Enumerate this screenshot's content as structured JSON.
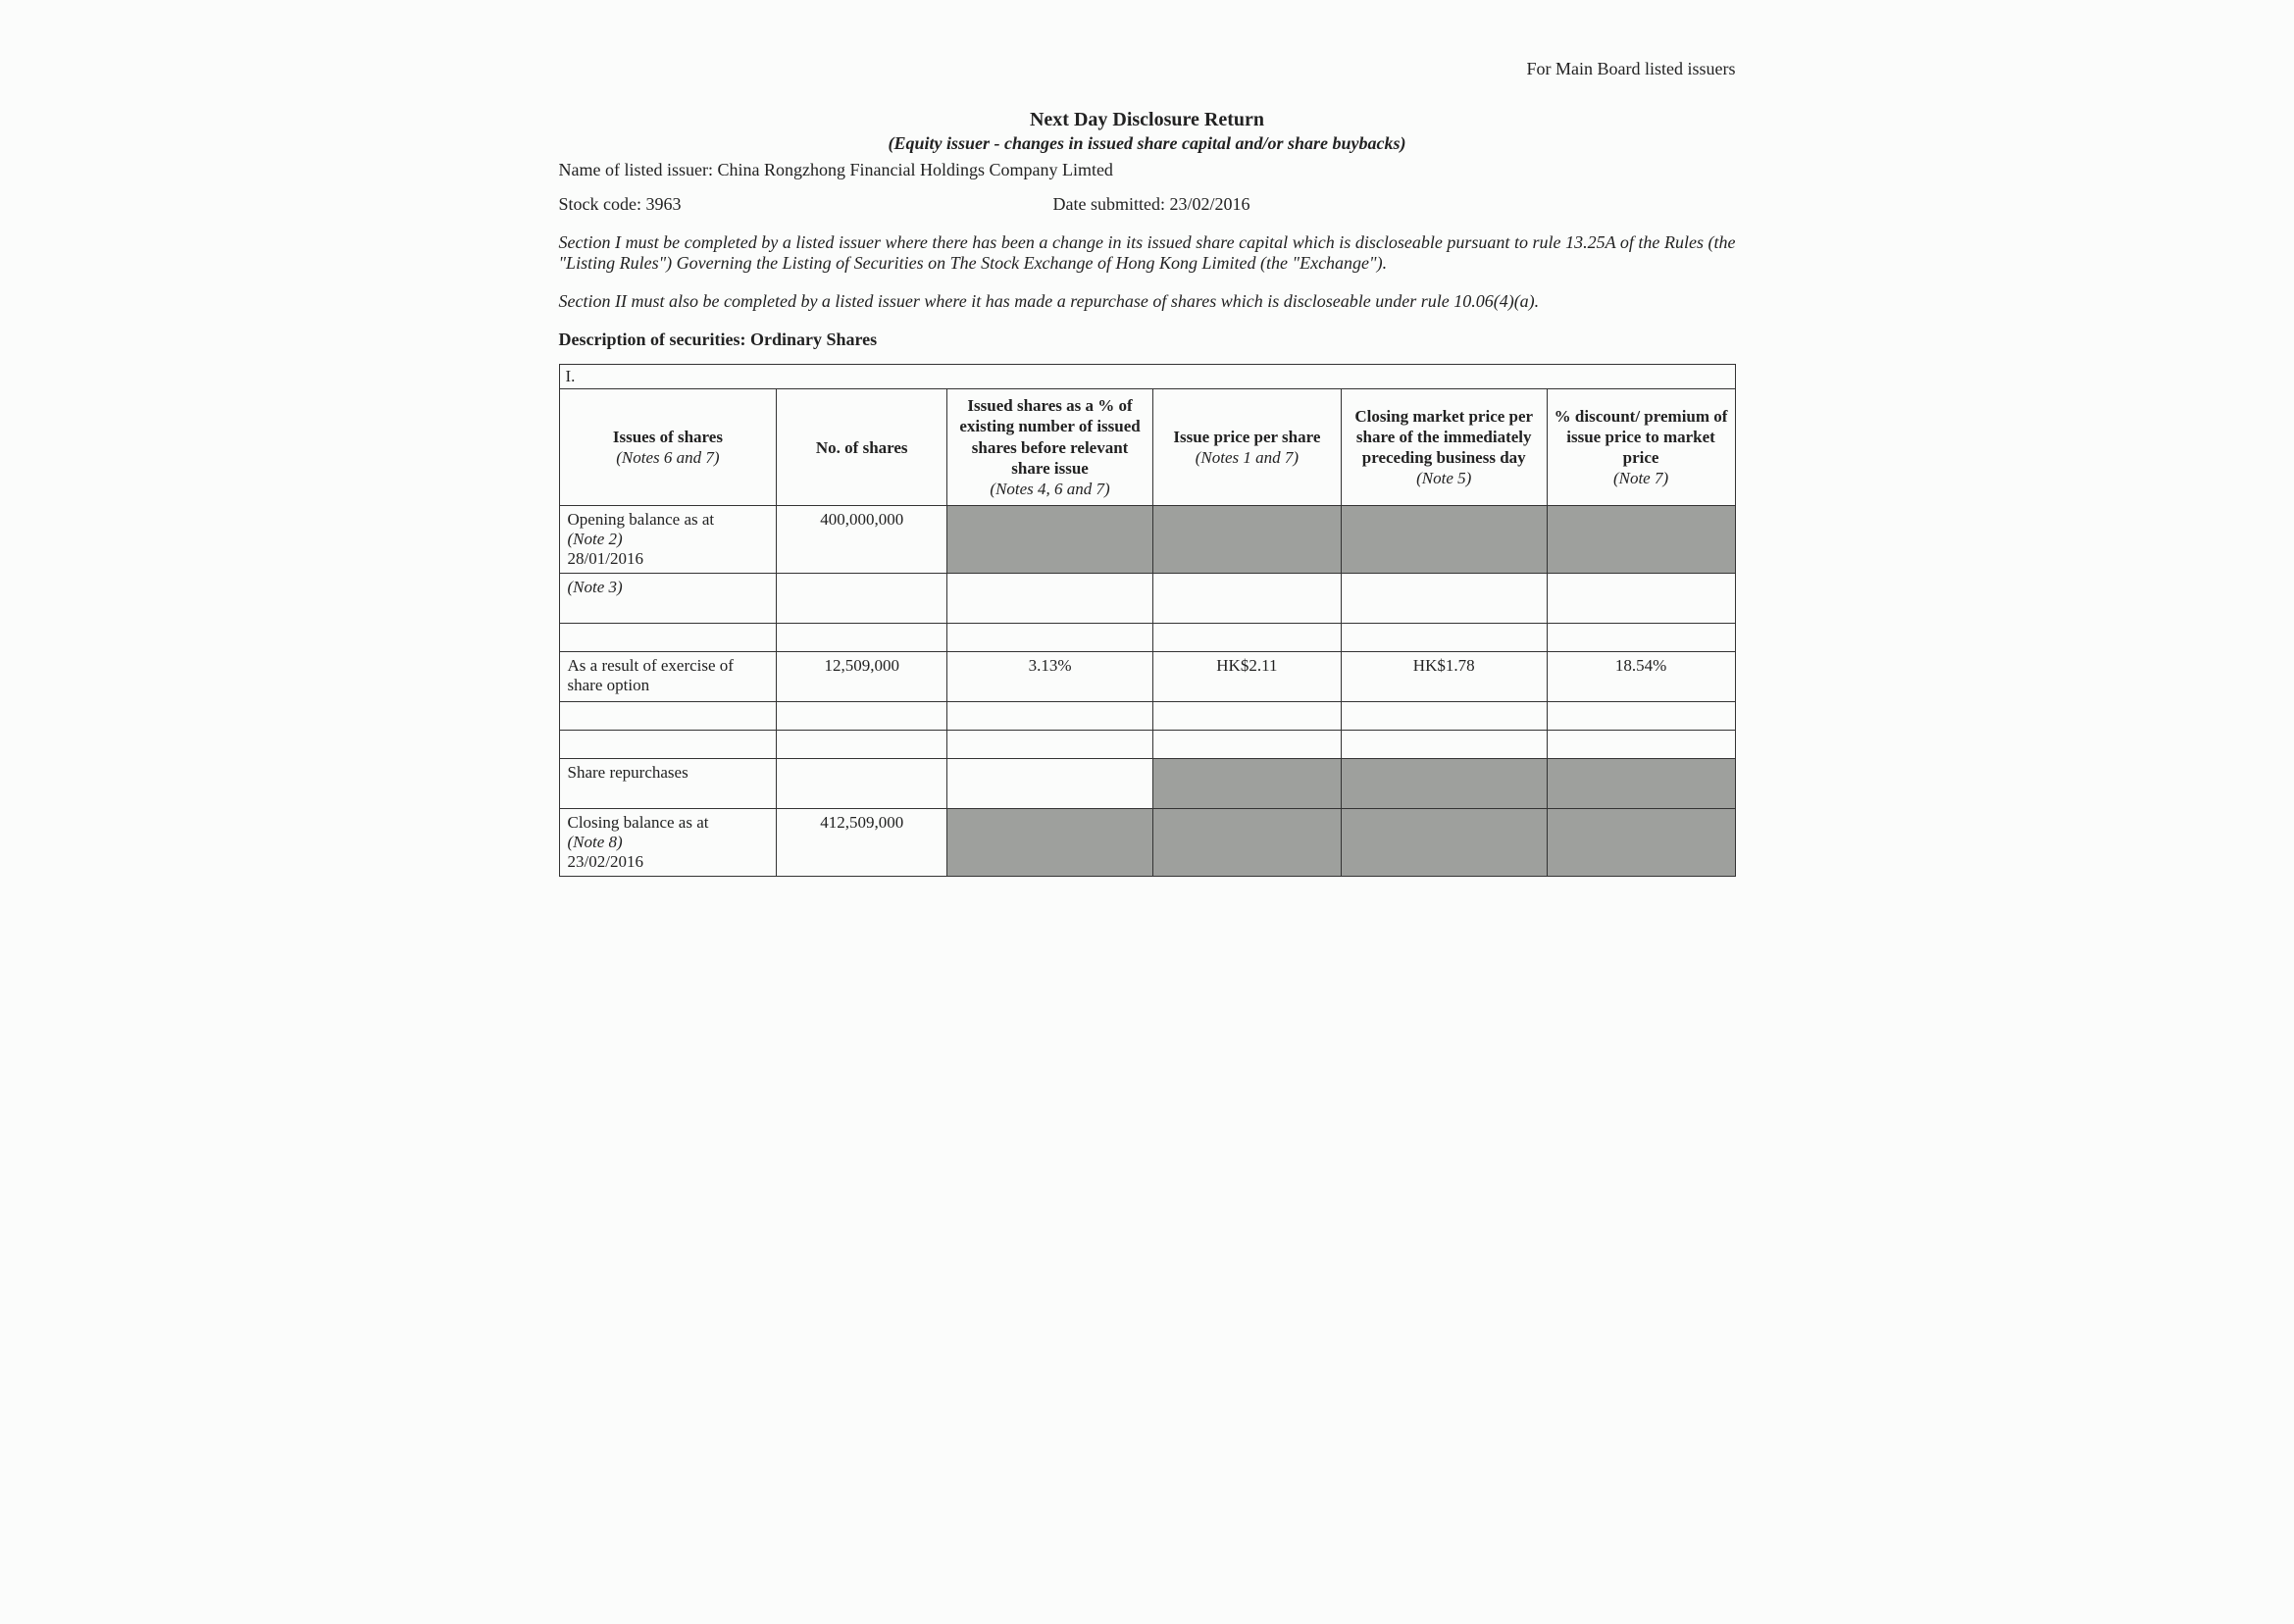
{
  "header": {
    "top_right": "For Main Board listed issuers",
    "title": "Next Day Disclosure Return",
    "subtitle": "(Equity issuer - changes in issued share capital and/or share buybacks)",
    "name_label": "Name of listed issuer:",
    "name_value": "China Rongzhong Financial Holdings Company Limted",
    "stock_label": "Stock code:",
    "stock_value": "3963",
    "date_label": "Date submitted:",
    "date_value": "23/02/2016"
  },
  "notes": {
    "section1": "Section I must be completed by a listed issuer where there has been a change in its issued share capital which is discloseable pursuant to rule 13.25A of the Rules (the \"Listing Rules\") Governing the Listing of Securities on The Stock Exchange of Hong Kong Limited (the \"Exchange\").",
    "section2": "Section II must also be completed by a listed issuer where it has made a repurchase of shares which is discloseable under rule 10.06(4)(a).",
    "description_label": "Description of securities:",
    "description_value": "Ordinary Shares"
  },
  "table": {
    "section_label": "I.",
    "headers": {
      "c1": "Issues of shares",
      "c1_note": "(Notes 6 and 7)",
      "c2": "No. of shares",
      "c3": "Issued shares as a % of existing number of issued shares before relevant share issue",
      "c3_note": "(Notes 4, 6 and 7)",
      "c4": "Issue price per share",
      "c4_note": "(Notes 1 and 7)",
      "c5": "Closing market price per share of the immediately preceding business day",
      "c5_note": "(Note 5)",
      "c6": "% discount/ premium of issue price to market price",
      "c6_note": "(Note 7)"
    },
    "rows": {
      "opening": {
        "label_line1": "Opening balance as at",
        "label_note": "(Note 2)",
        "label_date": "28/01/2016",
        "no_of_shares": "400,000,000"
      },
      "note3": {
        "label": "(Note 3)"
      },
      "exercise": {
        "label": "As a result of exercise of share option",
        "no_of_shares": "12,509,000",
        "pct": "3.13%",
        "issue_price": "HK$2.11",
        "market_price": "HK$1.78",
        "discount": "18.54%"
      },
      "repurchases": {
        "label": "Share repurchases"
      },
      "closing": {
        "label_line1": "Closing balance as at",
        "label_note": "(Note 8)",
        "label_date": "23/02/2016",
        "no_of_shares": "412,509,000"
      }
    }
  },
  "colors": {
    "shaded": "#9ea09d",
    "border": "#333333",
    "background": "#fbfcfb",
    "text": "#222222"
  }
}
